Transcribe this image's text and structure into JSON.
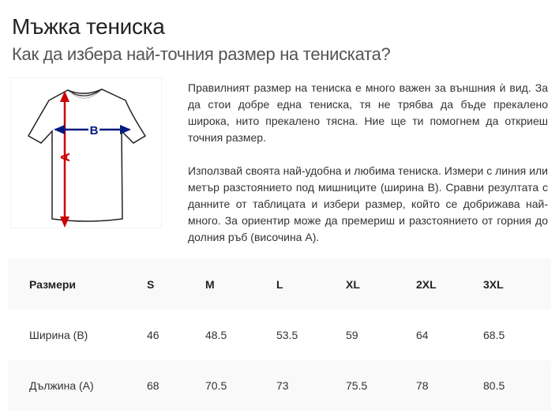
{
  "title": "Мъжка тениска",
  "subtitle": "Как да избера най-точния размер на тениската?",
  "image": {
    "label_a": "A",
    "label_b": "B",
    "color_a": "#cc0000",
    "color_b": "#001a80"
  },
  "paragraphs": [
    "Правилният размер на тениска е много важен за външния ѝ вид. За да стои добре една тениска, тя не трябва да бъде прекалено широка, нито прекалено тясна. Ние ще ти помогнем да откриеш точния размер.",
    "Използвай своята най-удобна и любима тениска. Измери с линия или метър разстоянието под мишниците (ширина B). Сравни резултата с данните от таблицата и избери размер, който се добрижава най-много. За ориентир може да премериш и разстоянието от горния до долния ръб (височина A)."
  ],
  "table": {
    "headers": [
      "Размери",
      "S",
      "M",
      "L",
      "XL",
      "2XL",
      "3XL"
    ],
    "rows": [
      [
        "Ширина (B)",
        "46",
        "48.5",
        "53.5",
        "59",
        "64",
        "68.5"
      ],
      [
        "Дължина (A)",
        "68",
        "70.5",
        "73",
        "75.5",
        "78",
        "80.5"
      ]
    ]
  }
}
